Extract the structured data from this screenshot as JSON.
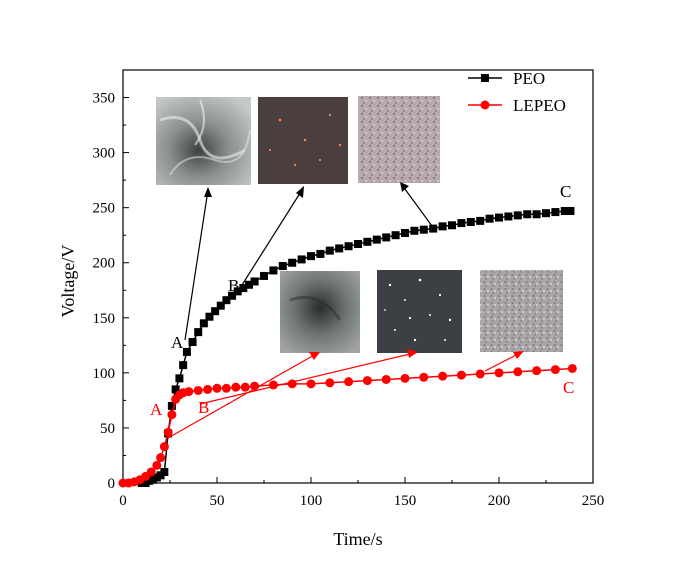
{
  "chart_data": {
    "type": "line",
    "xlabel": "Time/s",
    "ylabel": "Voltage/V",
    "xlim": [
      0,
      250
    ],
    "ylim": [
      0,
      375
    ],
    "xticks": [
      0,
      50,
      100,
      150,
      200,
      250
    ],
    "yticks": [
      0,
      50,
      100,
      150,
      200,
      250,
      300,
      350
    ],
    "grid": false,
    "legend_position": "top-right",
    "series": [
      {
        "name": "PEO",
        "color": "#000000",
        "marker": "square",
        "x": [
          10,
          12,
          14,
          16,
          18,
          20,
          22,
          24,
          26,
          28,
          30,
          32,
          34,
          37,
          40,
          43,
          46,
          49,
          52,
          55,
          58,
          61,
          64,
          67,
          70,
          75,
          80,
          85,
          90,
          95,
          100,
          105,
          110,
          115,
          120,
          125,
          130,
          135,
          140,
          145,
          150,
          155,
          160,
          165,
          170,
          175,
          180,
          185,
          190,
          195,
          200,
          205,
          210,
          215,
          220,
          225,
          230,
          235,
          238
        ],
        "y": [
          0,
          0,
          2,
          3,
          5,
          7,
          10,
          45,
          70,
          85,
          95,
          107,
          119,
          128,
          137,
          145,
          151,
          156,
          161,
          166,
          170,
          174,
          177,
          180,
          183,
          188,
          193,
          197,
          200,
          203,
          206,
          208,
          211,
          213,
          215,
          217,
          219,
          221,
          223,
          225,
          227,
          229,
          230,
          231,
          233,
          234,
          236,
          237,
          238,
          240,
          241,
          242,
          243,
          244,
          244,
          245,
          246,
          247,
          247
        ]
      },
      {
        "name": "LEPEO",
        "color": "#ff0000",
        "marker": "circle",
        "x": [
          0,
          3,
          6,
          9,
          12,
          15,
          18,
          20,
          22,
          24,
          26,
          28,
          30,
          32,
          35,
          40,
          45,
          50,
          55,
          60,
          65,
          70,
          80,
          90,
          100,
          110,
          120,
          130,
          140,
          150,
          160,
          170,
          180,
          190,
          200,
          210,
          220,
          230,
          239
        ],
        "y": [
          0,
          0,
          1,
          3,
          6,
          10,
          16,
          23,
          33,
          46,
          62,
          76,
          80,
          82,
          83,
          84,
          85,
          86,
          86,
          87,
          87,
          88,
          89,
          90,
          90,
          91,
          92,
          93,
          94,
          95,
          96,
          97,
          98,
          99,
          100,
          101,
          102,
          103,
          104
        ]
      }
    ],
    "annotations": [
      {
        "text": "A",
        "series": "PEO",
        "color": "#000000"
      },
      {
        "text": "B",
        "series": "PEO",
        "color": "#000000"
      },
      {
        "text": "C",
        "series": "PEO",
        "color": "#000000"
      },
      {
        "text": "A",
        "series": "LEPEO",
        "color": "#ff0000"
      },
      {
        "text": "B",
        "series": "LEPEO",
        "color": "#ff0000"
      },
      {
        "text": "C",
        "series": "LEPEO",
        "color": "#ff0000"
      }
    ],
    "inset_images": [
      {
        "series": "PEO",
        "stage": "A",
        "description": "grey dendritic surface micrograph"
      },
      {
        "series": "PEO",
        "stage": "B",
        "description": "dark surface with sparse sparks"
      },
      {
        "series": "PEO",
        "stage": "C",
        "description": "speckled porous surface micrograph"
      },
      {
        "series": "LEPEO",
        "stage": "A",
        "description": "grey surface with dark center"
      },
      {
        "series": "LEPEO",
        "stage": "B",
        "description": "dark surface with dense bright sparks"
      },
      {
        "series": "LEPEO",
        "stage": "C",
        "description": "fine-grained porous surface micrograph"
      }
    ]
  }
}
